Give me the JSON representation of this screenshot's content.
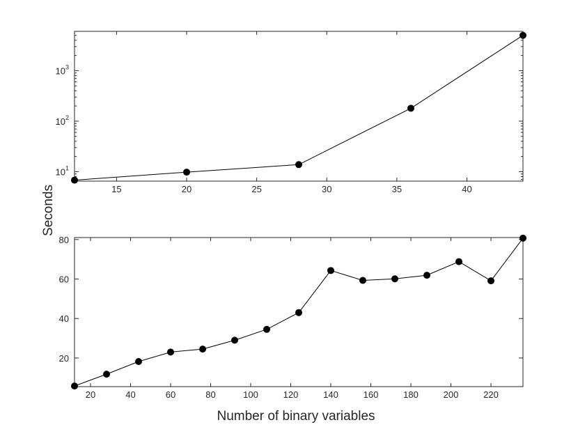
{
  "figure": {
    "shared_ylabel": "Seconds"
  },
  "chart_data": [
    {
      "type": "line",
      "panel": "top",
      "xlabel": "",
      "ylabel": "Seconds",
      "yscale": "log",
      "xlim": [
        12,
        44
      ],
      "ylim": [
        6.5,
        6000
      ],
      "xticks": [
        15,
        20,
        25,
        30,
        35,
        40
      ],
      "xtick_labels": [
        "15",
        "20",
        "25",
        "30",
        "35",
        "40"
      ],
      "yticks": [
        10,
        100,
        1000
      ],
      "ytick_labels": [
        "10",
        "10",
        "10"
      ],
      "ytick_exponents": [
        "1",
        "2",
        "3"
      ],
      "grid": false,
      "marker": "filled-circle",
      "series": [
        {
          "x": [
            12,
            20,
            28,
            36,
            44
          ],
          "values": [
            6.8,
            9.8,
            13.8,
            180,
            5000
          ]
        }
      ]
    },
    {
      "type": "line",
      "panel": "bottom",
      "xlabel": "Number of binary variables",
      "ylabel": "Seconds",
      "yscale": "linear",
      "xlim": [
        12,
        236
      ],
      "ylim": [
        5.5,
        81
      ],
      "xticks": [
        20,
        40,
        60,
        80,
        100,
        120,
        140,
        160,
        180,
        200,
        220
      ],
      "xtick_labels": [
        "20",
        "40",
        "60",
        "80",
        "100",
        "120",
        "140",
        "160",
        "180",
        "200",
        "220"
      ],
      "yticks": [
        20,
        40,
        60,
        80
      ],
      "ytick_labels": [
        "20",
        "40",
        "60",
        "80"
      ],
      "grid": false,
      "marker": "filled-circle",
      "series": [
        {
          "x": [
            12,
            28,
            44,
            60,
            76,
            92,
            108,
            124,
            140,
            156,
            172,
            188,
            204,
            220,
            236
          ],
          "values": [
            5.8,
            11.8,
            18.2,
            23.0,
            24.5,
            29.0,
            34.5,
            43.0,
            64.3,
            59.3,
            60.1,
            61.9,
            68.8,
            59.1,
            80.7
          ]
        }
      ]
    }
  ]
}
